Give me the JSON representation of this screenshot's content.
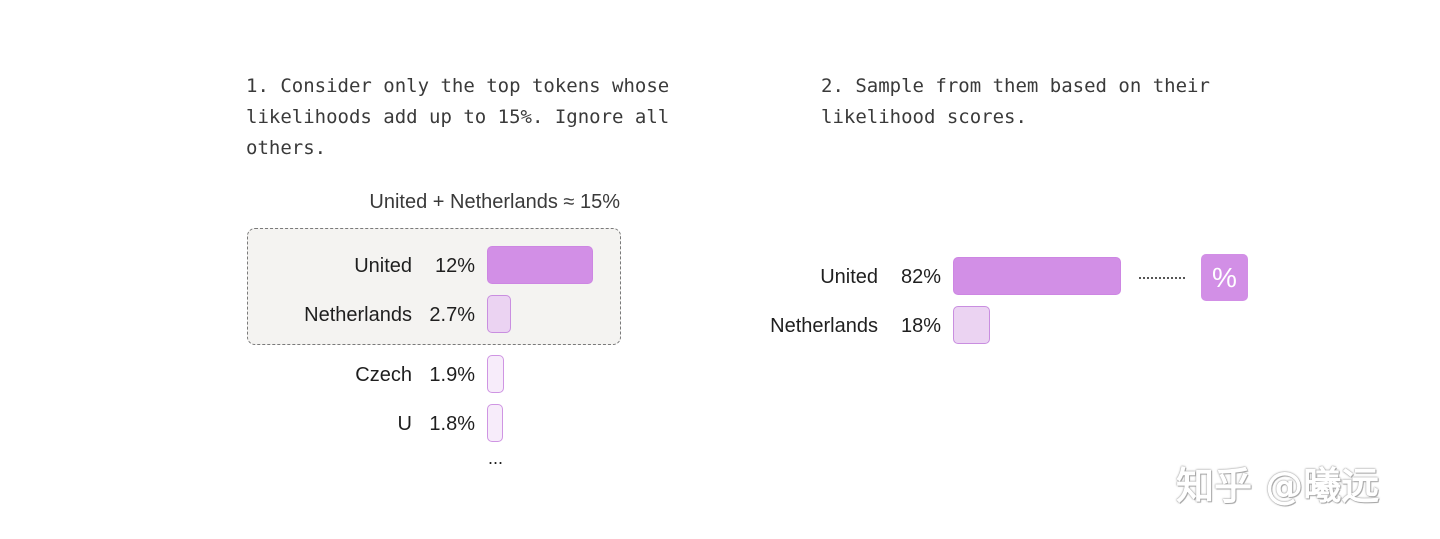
{
  "step1": {
    "text": "1. Consider only the top tokens whose likelihoods add up to 15%. Ignore all others."
  },
  "step2": {
    "text": "2. Sample from them based on their likelihood scores."
  },
  "left_panel": {
    "caption": "United + Netherlands ≈ 15%",
    "ellipsis": "...",
    "tokens": [
      {
        "label": "United",
        "percent": "12%",
        "value": 12,
        "style": "strong"
      },
      {
        "label": "Netherlands",
        "percent": "2.7%",
        "value": 2.7,
        "style": "medium"
      },
      {
        "label": "Czech",
        "percent": "1.9%",
        "value": 1.9,
        "style": "light"
      },
      {
        "label": "U",
        "percent": "1.8%",
        "value": 1.8,
        "style": "light"
      }
    ]
  },
  "right_panel": {
    "tokens": [
      {
        "label": "United",
        "percent": "82%",
        "value": 82,
        "style": "strong"
      },
      {
        "label": "Netherlands",
        "percent": "18%",
        "value": 18,
        "style": "medium"
      }
    ],
    "sampled_token": "%"
  },
  "colors": {
    "bar_strong": "#d28fe6",
    "bar_medium": "#ebd3f2",
    "bar_light": "#f7ecfa",
    "selection_bg": "#f4f3f1"
  },
  "watermark": "知乎 @曦远"
}
